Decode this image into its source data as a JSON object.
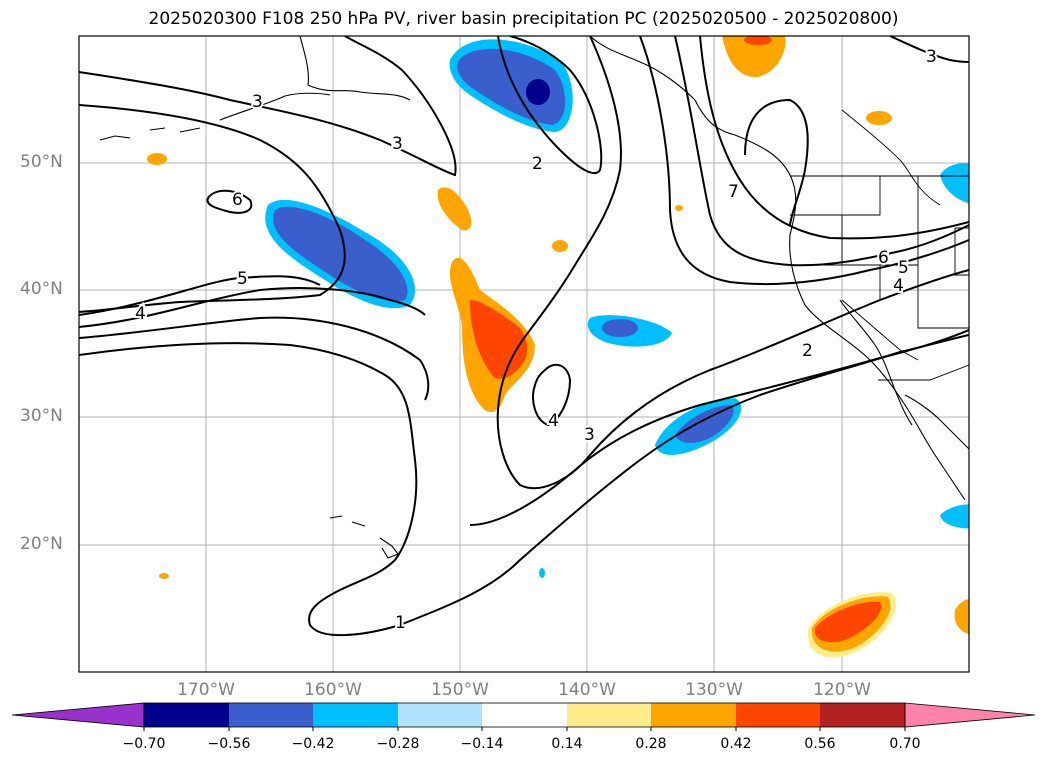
{
  "title": "2025020300 F108 250 hPa PV, river basin precipitation PC (2025020500 - 2025020800)",
  "map": {
    "lon_range": [
      -180,
      -110
    ],
    "lat_range": [
      10,
      60
    ],
    "lat_labels": [
      "50°N",
      "40°N",
      "30°N",
      "20°N"
    ],
    "lon_labels": [
      "170°W",
      "160°W",
      "150°W",
      "140°W",
      "130°W",
      "120°W"
    ],
    "contour_labels": [
      "3",
      "3",
      "2",
      "6",
      "5",
      "4",
      "7",
      "6",
      "5",
      "4",
      "2",
      "4",
      "3",
      "1",
      "3"
    ],
    "contour_color": "#000000"
  },
  "colorbar": {
    "ticks": [
      "−0.70",
      "−0.56",
      "−0.42",
      "−0.28",
      "−0.14",
      "0.14",
      "0.28",
      "0.42",
      "0.56",
      "0.70"
    ],
    "colors": [
      "#9932cc",
      "#00008b",
      "#3a5fcd",
      "#00bfff",
      "#b0e2ff",
      "#ffffff",
      "#ffec8b",
      "#ffa500",
      "#ff4500",
      "#b22222",
      "#ff82ab"
    ]
  }
}
